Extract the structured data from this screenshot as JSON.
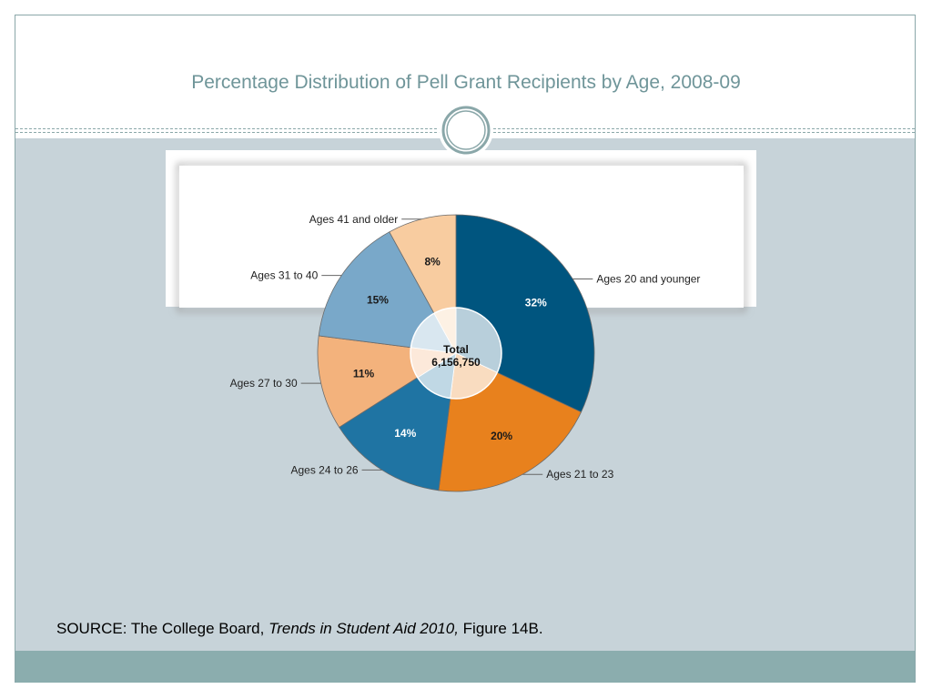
{
  "slide": {
    "title": "Percentage Distribution of Pell Grant Recipients by Age, 2008-09",
    "source_prefix": "SOURCE: The College Board, ",
    "source_title": "Trends in Student Aid 2010,",
    "source_suffix": " Figure 14B."
  },
  "colors": {
    "title": "#6f9599",
    "body_background": "#c7d3d9",
    "footer": "#8badae"
  },
  "chart_data": {
    "type": "pie",
    "center_label": "Total",
    "center_value": "6,156,750",
    "slices": [
      {
        "name": "Ages 20 and younger",
        "value": 32,
        "label": "32%",
        "color": "#00557f",
        "label_color": "#ffffff"
      },
      {
        "name": "Ages 21 to 23",
        "value": 20,
        "label": "20%",
        "color": "#e8811d",
        "label_color": "#1a1a1a"
      },
      {
        "name": "Ages 24 to 26",
        "value": 14,
        "label": "14%",
        "color": "#1f74a3",
        "label_color": "#ffffff"
      },
      {
        "name": "Ages 27 to 30",
        "value": 11,
        "label": "11%",
        "color": "#f3b27c",
        "label_color": "#1a1a1a"
      },
      {
        "name": "Ages 31 to 40",
        "value": 15,
        "label": "15%",
        "color": "#79a8c9",
        "label_color": "#1a1a1a"
      },
      {
        "name": "Ages 41 and older",
        "value": 8,
        "label": "8%",
        "color": "#f8cca0",
        "label_color": "#1a1a1a"
      }
    ]
  }
}
